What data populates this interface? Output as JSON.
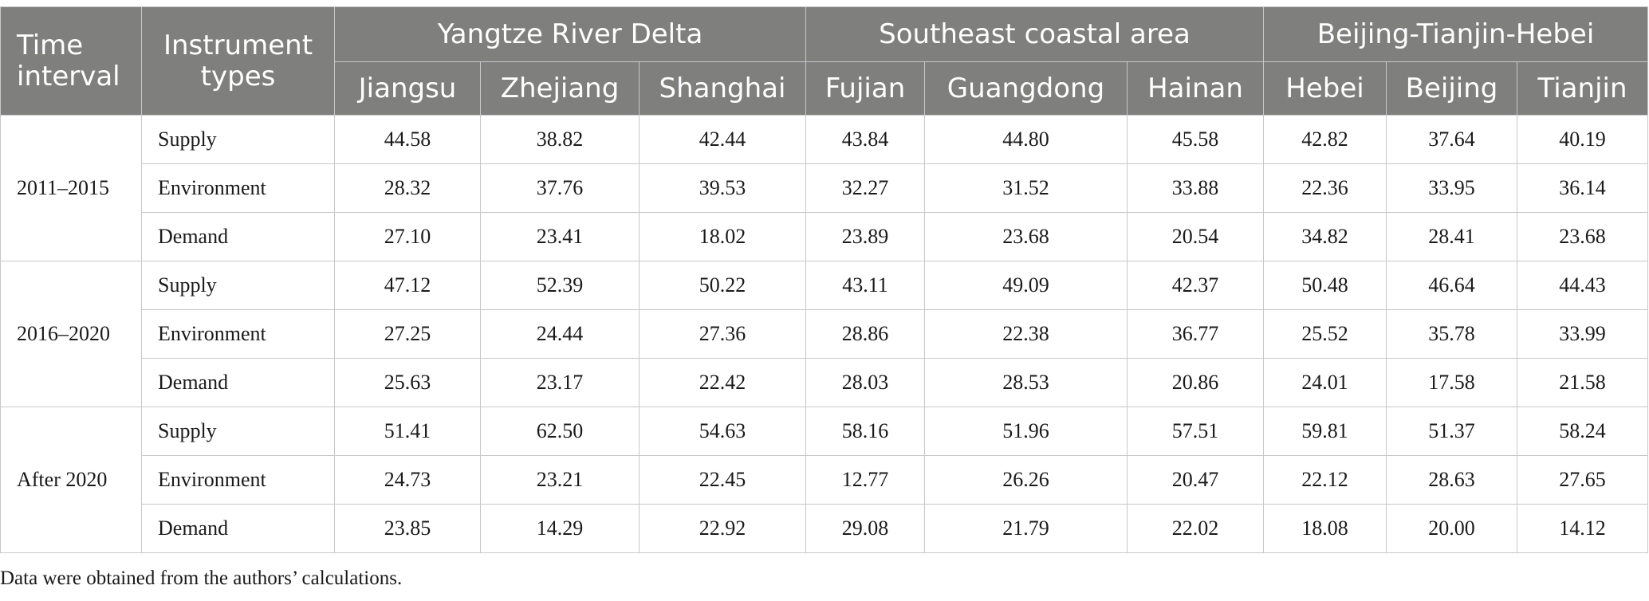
{
  "header": {
    "time_interval": "Time interval",
    "instrument_types": "Instrument types",
    "regions": [
      {
        "name": "Yangtze River Delta",
        "provinces": [
          "Jiangsu",
          "Zhejiang",
          "Shanghai"
        ]
      },
      {
        "name": "Southeast coastal area",
        "provinces": [
          "Fujian",
          "Guangdong",
          "Hainan"
        ]
      },
      {
        "name": "Beijing-Tianjin-Hebei",
        "provinces": [
          "Hebei",
          "Beijing",
          "Tianjin"
        ]
      }
    ]
  },
  "groups": [
    {
      "period": "2011–2015",
      "rows": [
        {
          "type": "Supply",
          "values": [
            "44.58",
            "38.82",
            "42.44",
            "43.84",
            "44.80",
            "45.58",
            "42.82",
            "37.64",
            "40.19"
          ]
        },
        {
          "type": "Environment",
          "values": [
            "28.32",
            "37.76",
            "39.53",
            "32.27",
            "31.52",
            "33.88",
            "22.36",
            "33.95",
            "36.14"
          ]
        },
        {
          "type": "Demand",
          "values": [
            "27.10",
            "23.41",
            "18.02",
            "23.89",
            "23.68",
            "20.54",
            "34.82",
            "28.41",
            "23.68"
          ]
        }
      ]
    },
    {
      "period": "2016–2020",
      "rows": [
        {
          "type": "Supply",
          "values": [
            "47.12",
            "52.39",
            "50.22",
            "43.11",
            "49.09",
            "42.37",
            "50.48",
            "46.64",
            "44.43"
          ]
        },
        {
          "type": "Environment",
          "values": [
            "27.25",
            "24.44",
            "27.36",
            "28.86",
            "22.38",
            "36.77",
            "25.52",
            "35.78",
            "33.99"
          ]
        },
        {
          "type": "Demand",
          "values": [
            "25.63",
            "23.17",
            "22.42",
            "28.03",
            "28.53",
            "20.86",
            "24.01",
            "17.58",
            "21.58"
          ]
        }
      ]
    },
    {
      "period": "After 2020",
      "rows": [
        {
          "type": "Supply",
          "values": [
            "51.41",
            "62.50",
            "54.63",
            "58.16",
            "51.96",
            "57.51",
            "59.81",
            "51.37",
            "58.24"
          ]
        },
        {
          "type": "Environment",
          "values": [
            "24.73",
            "23.21",
            "22.45",
            "12.77",
            "26.26",
            "20.47",
            "22.12",
            "28.63",
            "27.65"
          ]
        },
        {
          "type": "Demand",
          "values": [
            "23.85",
            "14.29",
            "22.92",
            "29.08",
            "21.79",
            "22.02",
            "18.08",
            "20.00",
            "14.12"
          ]
        }
      ]
    }
  ],
  "footnote": "Data were obtained from the authors’ calculations."
}
